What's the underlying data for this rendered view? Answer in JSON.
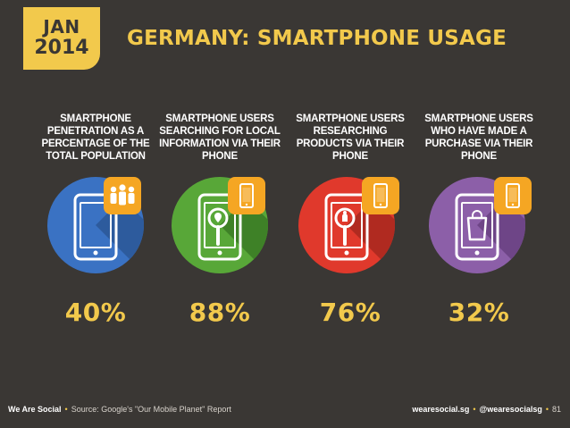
{
  "header": {
    "month": "JAN",
    "year": "2014",
    "title": "GERMANY: SMARTPHONE USAGE"
  },
  "stats": [
    {
      "label": "SMARTPHONE PENETRATION AS A PERCENTAGE OF THE TOTAL POPULATION",
      "value": "40%",
      "color": "#3a72c3",
      "icon": "people-icon"
    },
    {
      "label": "SMARTPHONE USERS SEARCHING FOR LOCAL INFORMATION VIA THEIR PHONE",
      "value": "88%",
      "color": "#58a738",
      "icon": "location-magnifier-icon"
    },
    {
      "label": "SMARTPHONE USERS RESEARCHING PRODUCTS VIA THEIR PHONE",
      "value": "76%",
      "color": "#e0392c",
      "icon": "product-magnifier-icon"
    },
    {
      "label": "SMARTPHONE USERS WHO HAVE MADE A PURCHASE VIA THEIR PHONE",
      "value": "32%",
      "color": "#8c5fa8",
      "icon": "shopping-bag-icon"
    }
  ],
  "footer": {
    "brand": "We Are Social",
    "source": "Source: Google's \"Our Mobile Planet\" Report",
    "website": "wearesocial.sg",
    "handle": "@wearesocialsg",
    "page_number": "81"
  },
  "colors": {
    "background": "#3a3734",
    "accent": "#f2c94c"
  }
}
